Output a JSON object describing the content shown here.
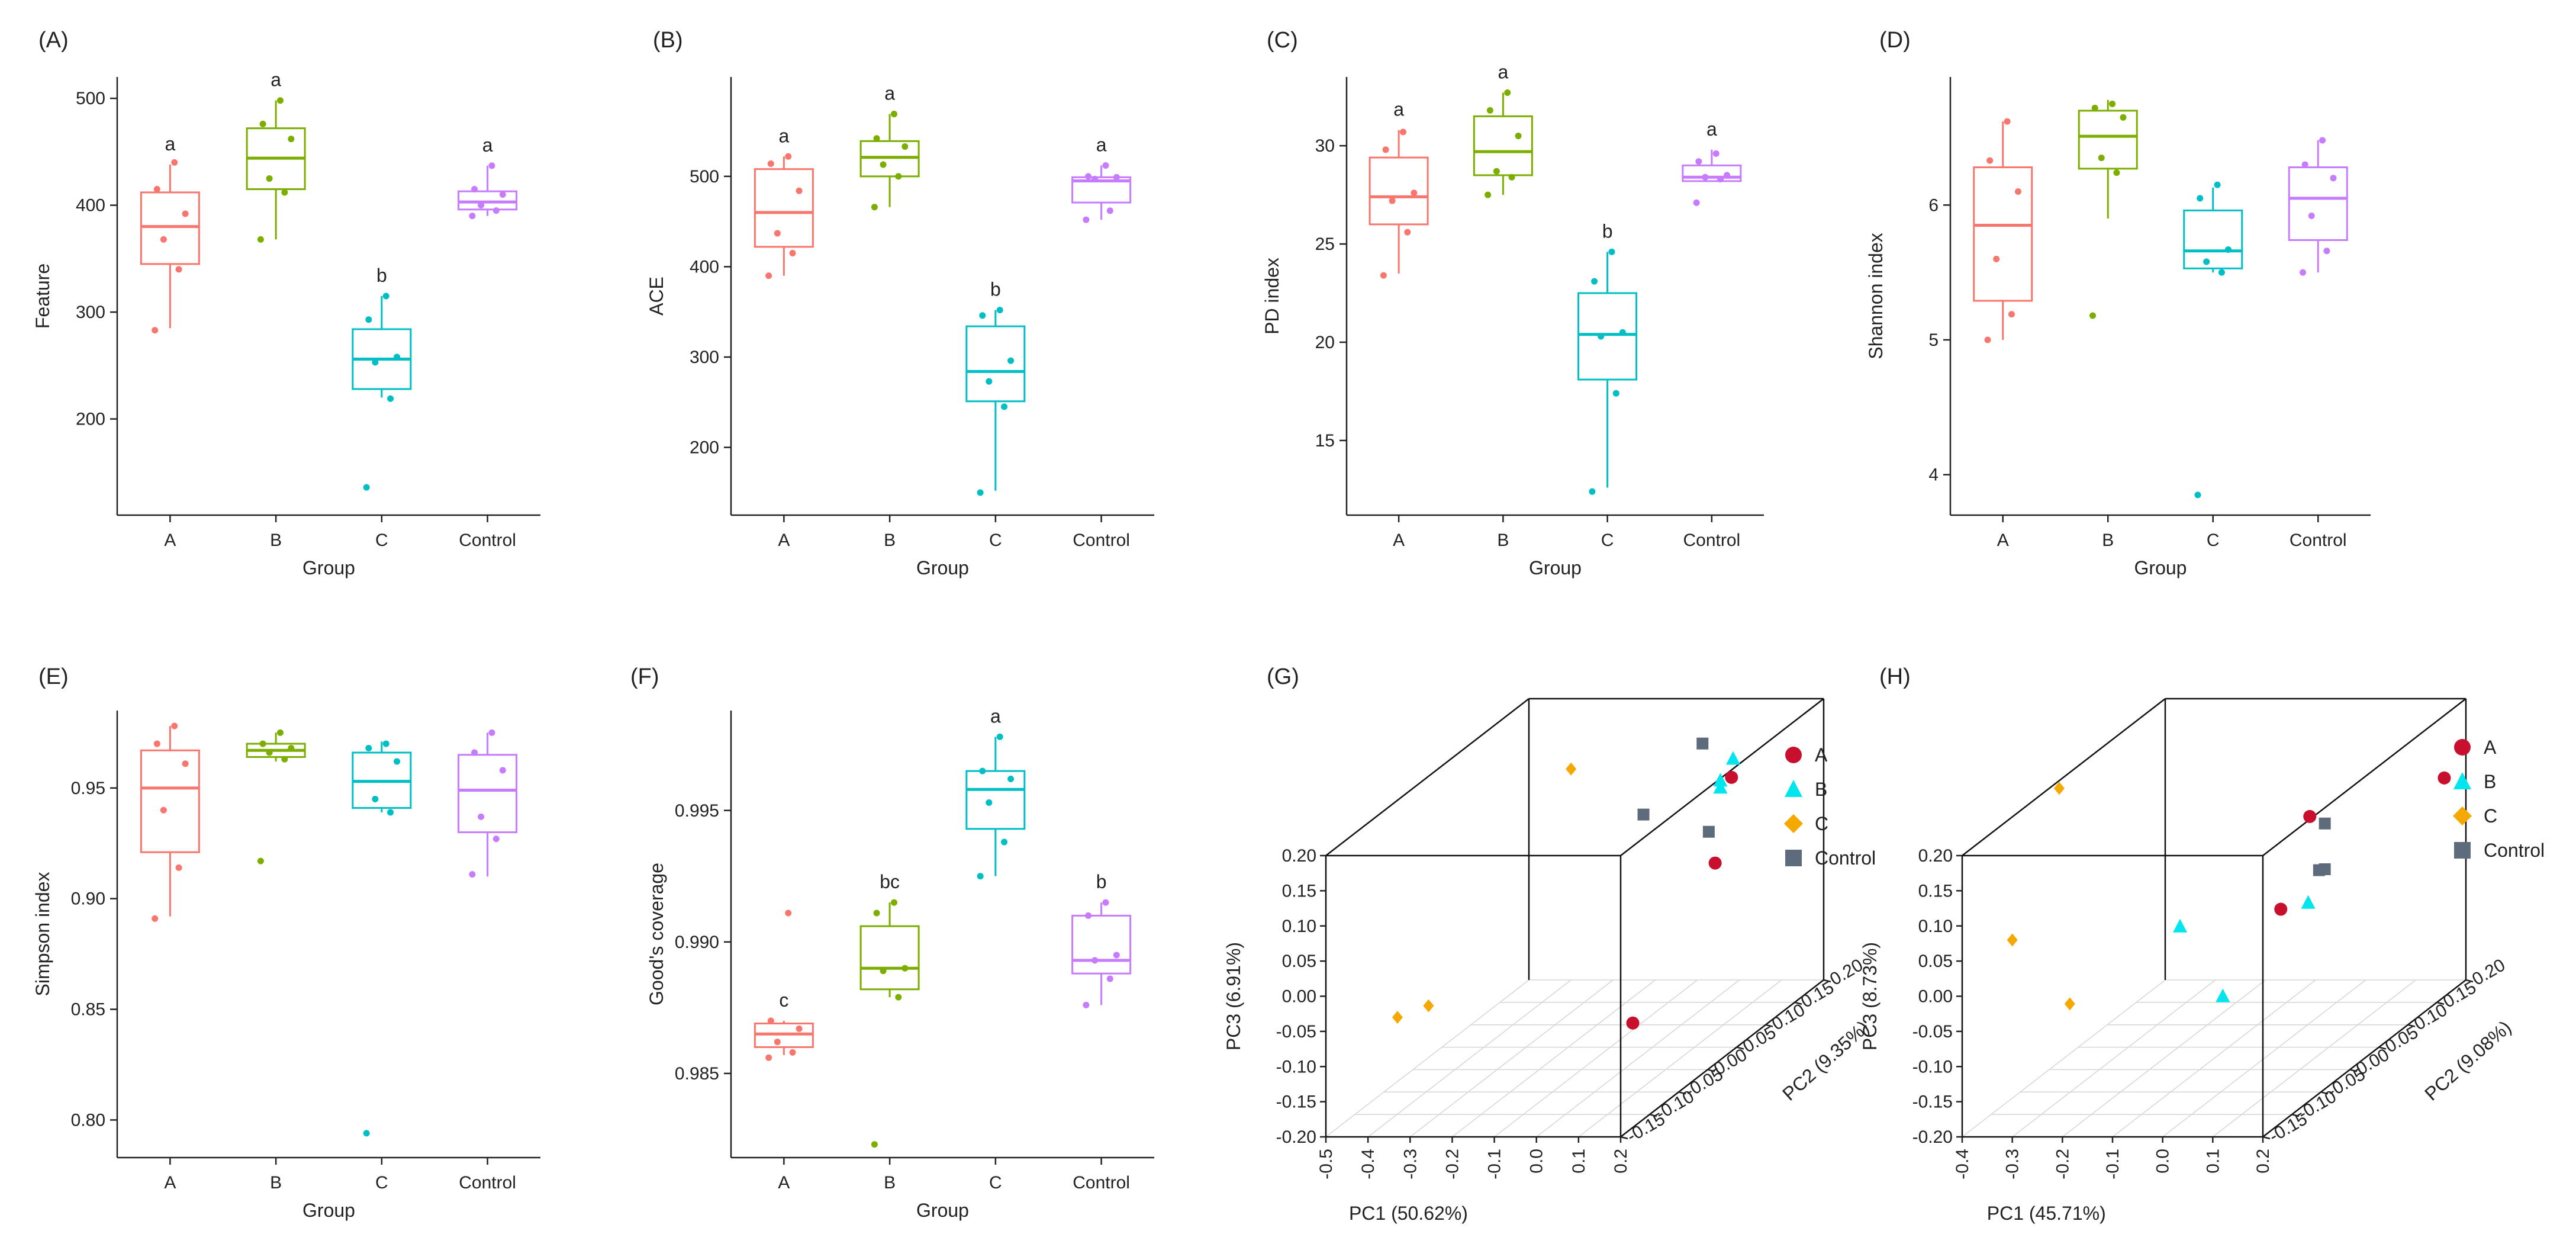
{
  "colors": {
    "A": "#F8766D",
    "B": "#7CAE00",
    "C": "#00BFC4",
    "Control": "#C77CFF",
    "pcoaA": "#C8102E",
    "pcoaB": "#00E5EE",
    "pcoaC": "#F5A800",
    "pcoaControl": "#5E6B7D"
  },
  "chart_data": [
    {
      "type": "box",
      "label": "(A)",
      "xlabel": "Group",
      "ylabel": "Feature",
      "categories": [
        "A",
        "B",
        "C",
        "Control"
      ],
      "ylim": [
        110,
        520
      ],
      "ticks": [
        200,
        300,
        400,
        500
      ],
      "tick_labels": [
        "200",
        "300",
        "400",
        "500"
      ],
      "boxes": [
        {
          "q1": 345,
          "median": 380,
          "q3": 412,
          "wmin": 285,
          "wmax": 438,
          "letter": "a",
          "points": [
            283,
            340,
            368,
            392,
            415,
            440
          ]
        },
        {
          "q1": 415,
          "median": 444,
          "q3": 472,
          "wmin": 368,
          "wmax": 498,
          "letter": "a",
          "points": [
            368,
            412,
            425,
            462,
            476,
            498
          ]
        },
        {
          "q1": 228,
          "median": 256,
          "q3": 284,
          "wmin": 220,
          "wmax": 315,
          "letter": "b",
          "points": [
            136,
            219,
            253,
            258,
            293,
            315
          ]
        },
        {
          "q1": 396,
          "median": 403,
          "q3": 413,
          "wmin": 390,
          "wmax": 437,
          "letter": "a",
          "points": [
            390,
            395,
            400,
            410,
            415,
            437
          ]
        }
      ]
    },
    {
      "type": "box",
      "label": "(B)",
      "xlabel": "Group",
      "ylabel": "ACE",
      "categories": [
        "A",
        "B",
        "C",
        "Control"
      ],
      "ylim": [
        125,
        610
      ],
      "ticks": [
        200,
        300,
        400,
        500
      ],
      "tick_labels": [
        "200",
        "300",
        "400",
        "500"
      ],
      "boxes": [
        {
          "q1": 422,
          "median": 460,
          "q3": 508,
          "wmin": 390,
          "wmax": 522,
          "letter": "a",
          "points": [
            390,
            415,
            437,
            484,
            514,
            522
          ]
        },
        {
          "q1": 500,
          "median": 521,
          "q3": 539,
          "wmin": 466,
          "wmax": 569,
          "letter": "a",
          "points": [
            466,
            500,
            513,
            533,
            542,
            569
          ]
        },
        {
          "q1": 251,
          "median": 284,
          "q3": 334,
          "wmin": 152,
          "wmax": 352,
          "letter": "b",
          "points": [
            150,
            245,
            273,
            296,
            346,
            352
          ]
        },
        {
          "q1": 471,
          "median": 495,
          "q3": 499,
          "wmin": 452,
          "wmax": 512,
          "letter": "a",
          "points": [
            452,
            462,
            497,
            499,
            500,
            512
          ]
        }
      ]
    },
    {
      "type": "box",
      "label": "(C)",
      "xlabel": "Group",
      "ylabel": "PD index",
      "categories": [
        "A",
        "B",
        "C",
        "Control"
      ],
      "ylim": [
        11.2,
        33.5
      ],
      "ticks": [
        15,
        20,
        25,
        30
      ],
      "tick_labels": [
        "15",
        "20",
        "25",
        "30"
      ],
      "boxes": [
        {
          "q1": 26.0,
          "median": 27.4,
          "q3": 29.4,
          "wmin": 23.5,
          "wmax": 30.8,
          "letter": "a",
          "points": [
            23.4,
            25.6,
            27.2,
            27.6,
            29.8,
            30.7
          ]
        },
        {
          "q1": 28.5,
          "median": 29.7,
          "q3": 31.5,
          "wmin": 27.5,
          "wmax": 32.7,
          "letter": "a",
          "points": [
            27.5,
            28.4,
            28.7,
            30.5,
            31.8,
            32.7
          ]
        },
        {
          "q1": 18.1,
          "median": 20.4,
          "q3": 22.5,
          "wmin": 12.6,
          "wmax": 24.6,
          "letter": "b",
          "points": [
            12.4,
            17.4,
            20.3,
            20.5,
            23.1,
            24.6
          ]
        },
        {
          "q1": 28.2,
          "median": 28.4,
          "q3": 29.0,
          "wmin": 28.2,
          "wmax": 29.8,
          "letter": "a",
          "points": [
            27.1,
            28.3,
            28.4,
            28.5,
            29.2,
            29.6
          ]
        }
      ]
    },
    {
      "type": "box",
      "label": "(D)",
      "xlabel": "Group",
      "ylabel": "Shannon index",
      "categories": [
        "A",
        "B",
        "C",
        "Control"
      ],
      "ylim": [
        3.7,
        6.95
      ],
      "ticks": [
        4,
        5,
        6
      ],
      "tick_labels": [
        "4",
        "5",
        "6"
      ],
      "boxes": [
        {
          "q1": 5.29,
          "median": 5.85,
          "q3": 6.28,
          "wmin": 5.0,
          "wmax": 6.62,
          "letter": "",
          "points": [
            5.0,
            5.19,
            5.6,
            6.1,
            6.33,
            6.62
          ]
        },
        {
          "q1": 6.27,
          "median": 6.51,
          "q3": 6.7,
          "wmin": 5.9,
          "wmax": 6.78,
          "letter": "",
          "points": [
            5.18,
            6.24,
            6.35,
            6.65,
            6.72,
            6.75
          ]
        },
        {
          "q1": 5.53,
          "median": 5.66,
          "q3": 5.96,
          "wmin": 5.5,
          "wmax": 6.13,
          "letter": "",
          "points": [
            3.85,
            5.5,
            5.58,
            5.67,
            6.05,
            6.15
          ]
        },
        {
          "q1": 5.74,
          "median": 6.05,
          "q3": 6.28,
          "wmin": 5.5,
          "wmax": 6.48,
          "letter": "",
          "points": [
            5.5,
            5.66,
            5.92,
            6.2,
            6.3,
            6.48
          ]
        }
      ]
    },
    {
      "type": "box",
      "label": "(E)",
      "xlabel": "Group",
      "ylabel": "Simpson index",
      "categories": [
        "A",
        "B",
        "C",
        "Control"
      ],
      "ylim": [
        0.783,
        0.985
      ],
      "ticks": [
        0.8,
        0.85,
        0.9,
        0.95
      ],
      "tick_labels": [
        "0.80",
        "0.85",
        "0.90",
        "0.95"
      ],
      "boxes": [
        {
          "q1": 0.921,
          "median": 0.95,
          "q3": 0.967,
          "wmin": 0.892,
          "wmax": 0.978,
          "letter": "",
          "points": [
            0.891,
            0.914,
            0.94,
            0.961,
            0.97,
            0.978
          ]
        },
        {
          "q1": 0.964,
          "median": 0.967,
          "q3": 0.97,
          "wmin": 0.962,
          "wmax": 0.975,
          "letter": "",
          "points": [
            0.917,
            0.963,
            0.966,
            0.968,
            0.97,
            0.975
          ]
        },
        {
          "q1": 0.941,
          "median": 0.953,
          "q3": 0.966,
          "wmin": 0.939,
          "wmax": 0.971,
          "letter": "",
          "points": [
            0.794,
            0.939,
            0.945,
            0.962,
            0.968,
            0.97
          ]
        },
        {
          "q1": 0.93,
          "median": 0.949,
          "q3": 0.965,
          "wmin": 0.91,
          "wmax": 0.975,
          "letter": "",
          "points": [
            0.911,
            0.927,
            0.937,
            0.958,
            0.966,
            0.975
          ]
        }
      ]
    },
    {
      "type": "box",
      "label": "(F)",
      "xlabel": "Group",
      "ylabel": "Good's coverage",
      "categories": [
        "A",
        "B",
        "C",
        "Control"
      ],
      "ylim": [
        0.9818,
        0.9988
      ],
      "ticks": [
        0.985,
        0.99,
        0.995
      ],
      "tick_labels": [
        "0.985",
        "0.990",
        "0.995"
      ],
      "boxes": [
        {
          "q1": 0.986,
          "median": 0.9865,
          "q3": 0.9869,
          "wmin": 0.9857,
          "wmax": 0.987,
          "letter": "c",
          "points": [
            0.9856,
            0.9858,
            0.9862,
            0.9867,
            0.987,
            0.9911
          ]
        },
        {
          "q1": 0.9882,
          "median": 0.989,
          "q3": 0.9906,
          "wmin": 0.9879,
          "wmax": 0.9915,
          "letter": "bc",
          "points": [
            0.9823,
            0.9879,
            0.9889,
            0.989,
            0.9911,
            0.9915
          ]
        },
        {
          "q1": 0.9943,
          "median": 0.9958,
          "q3": 0.9965,
          "wmin": 0.9925,
          "wmax": 0.9978,
          "letter": "a",
          "points": [
            0.9925,
            0.9938,
            0.9953,
            0.9962,
            0.9965,
            0.9978
          ]
        },
        {
          "q1": 0.9888,
          "median": 0.9893,
          "q3": 0.991,
          "wmin": 0.9876,
          "wmax": 0.9915,
          "letter": "b",
          "points": [
            0.9876,
            0.9886,
            0.9893,
            0.9895,
            0.991,
            0.9915
          ]
        }
      ]
    },
    {
      "type": "scatter3d",
      "label": "(G)",
      "xlabel": "PC1 (50.62%)",
      "ylabel": "PC2 (9.35%)",
      "zlabel": "PC3 (6.91%)",
      "xlim": [
        -0.5,
        0.2
      ],
      "ylim": [
        -0.15,
        0.2
      ],
      "zlim": [
        -0.2,
        0.2
      ],
      "x_ticks": [
        "-0.5",
        "-0.4",
        "-0.3",
        "-0.2",
        "-0.1",
        "0.0",
        "0.1",
        "0.2"
      ],
      "y_ticks": [
        "-0.15",
        "-0.10",
        "-0.05",
        "0.00",
        "0.05",
        "0.10",
        "0.15",
        "0.20"
      ],
      "z_ticks": [
        "-0.20",
        "-0.15",
        "-0.10",
        "-0.05",
        "0.00",
        "0.05",
        "0.10",
        "0.15",
        "0.20"
      ],
      "legend": [
        "A",
        "B",
        "C",
        "Control"
      ],
      "points": [
        {
          "g": "A",
          "x": 0.16,
          "y": -0.1,
          "z": -0.07
        },
        {
          "g": "A",
          "x": 0.08,
          "y": 0.1,
          "z": 0.03
        },
        {
          "g": "A",
          "x": 0.05,
          "y": 0.15,
          "z": 0.12
        },
        {
          "g": "B",
          "x": 0.12,
          "y": 0.08,
          "z": 0.16
        },
        {
          "g": "B",
          "x": 0.12,
          "y": 0.08,
          "z": 0.15
        },
        {
          "g": "B",
          "x": 0.04,
          "y": 0.16,
          "z": 0.14
        },
        {
          "g": "C",
          "x": -0.33,
          "y": -0.15,
          "z": -0.03
        },
        {
          "g": "C",
          "x": -0.27,
          "y": -0.14,
          "z": -0.02
        },
        {
          "g": "C",
          "x": -0.4,
          "y": 0.2,
          "z": 0.1
        },
        {
          "g": "Control",
          "x": 0.05,
          "y": 0.1,
          "z": 0.2
        },
        {
          "g": "Control",
          "x": 0.02,
          "y": 0.02,
          "z": 0.15
        },
        {
          "g": "Control",
          "x": 0.12,
          "y": 0.06,
          "z": 0.1
        }
      ]
    },
    {
      "type": "scatter3d",
      "label": "(H)",
      "xlabel": "PC1 (45.71%)",
      "ylabel": "PC2 (9.08%)",
      "zlabel": "PC3 (8.73%)",
      "xlim": [
        -0.4,
        0.2
      ],
      "ylim": [
        -0.15,
        0.2
      ],
      "zlim": [
        -0.2,
        0.2
      ],
      "x_ticks": [
        "-0.4",
        "-0.3",
        "-0.2",
        "-0.1",
        "0.0",
        "0.1",
        "0.2"
      ],
      "y_ticks": [
        "-0.15",
        "-0.10",
        "-0.05",
        "0.00",
        "0.05",
        "0.10",
        "0.15",
        "0.20"
      ],
      "z_ticks": [
        "-0.20",
        "-0.15",
        "-0.10",
        "-0.05",
        "0.00",
        "0.05",
        "0.10",
        "0.15",
        "0.20"
      ],
      "legend": [
        "A",
        "B",
        "C",
        "Control"
      ],
      "points": [
        {
          "g": "A",
          "x": 0.18,
          "y": 0.18,
          "z": 0.1
        },
        {
          "g": "A",
          "x": 0.12,
          "y": 0.0,
          "z": 0.16
        },
        {
          "g": "A",
          "x": 0.12,
          "y": -0.05,
          "z": 0.06
        },
        {
          "g": "B",
          "x": 0.0,
          "y": -0.12,
          "z": 0.08
        },
        {
          "g": "B",
          "x": 0.12,
          "y": -0.15,
          "z": 0.0
        },
        {
          "g": "B",
          "x": 0.14,
          "y": -0.02,
          "z": 0.05
        },
        {
          "g": "C",
          "x": -0.3,
          "y": -0.15,
          "z": 0.08
        },
        {
          "g": "C",
          "x": -0.22,
          "y": -0.12,
          "z": -0.03
        },
        {
          "g": "C",
          "x": -0.38,
          "y": 0.0,
          "z": 0.2
        },
        {
          "g": "Control",
          "x": 0.15,
          "y": 0.0,
          "z": 0.15
        },
        {
          "g": "Control",
          "x": 0.15,
          "y": -0.01,
          "z": 0.09
        },
        {
          "g": "Control",
          "x": 0.15,
          "y": 0.0,
          "z": 0.085
        }
      ]
    }
  ]
}
